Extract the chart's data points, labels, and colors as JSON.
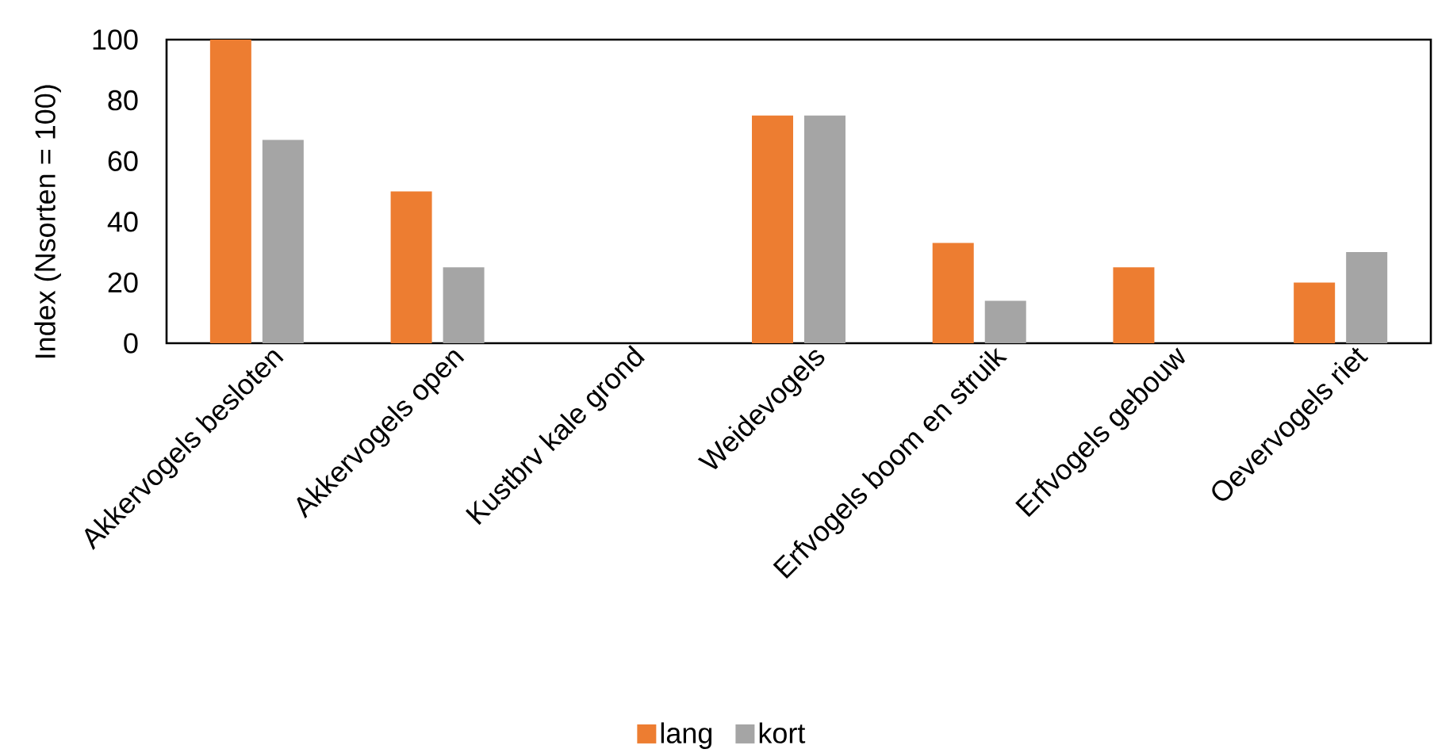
{
  "chart_data": {
    "type": "bar",
    "ylabel": "Index (Nsorten = 100)",
    "categories": [
      "Akkervogels besloten",
      "Akkervogels open",
      "Kustbrv kale grond",
      "Weidevogels",
      "Erfvogels boom en struik",
      "Erfvogels gebouw",
      "Oevervogels riet"
    ],
    "series": [
      {
        "name": "lang",
        "color": "#ed7d31",
        "values": [
          100,
          50,
          0,
          75,
          33,
          25,
          20
        ]
      },
      {
        "name": "kort",
        "color": "#a5a5a5",
        "values": [
          67,
          25,
          0,
          75,
          14,
          0,
          30
        ]
      }
    ],
    "ylim": [
      0,
      100
    ],
    "yticks": [
      0,
      20,
      40,
      60,
      80,
      100
    ],
    "legend": "bottom"
  }
}
